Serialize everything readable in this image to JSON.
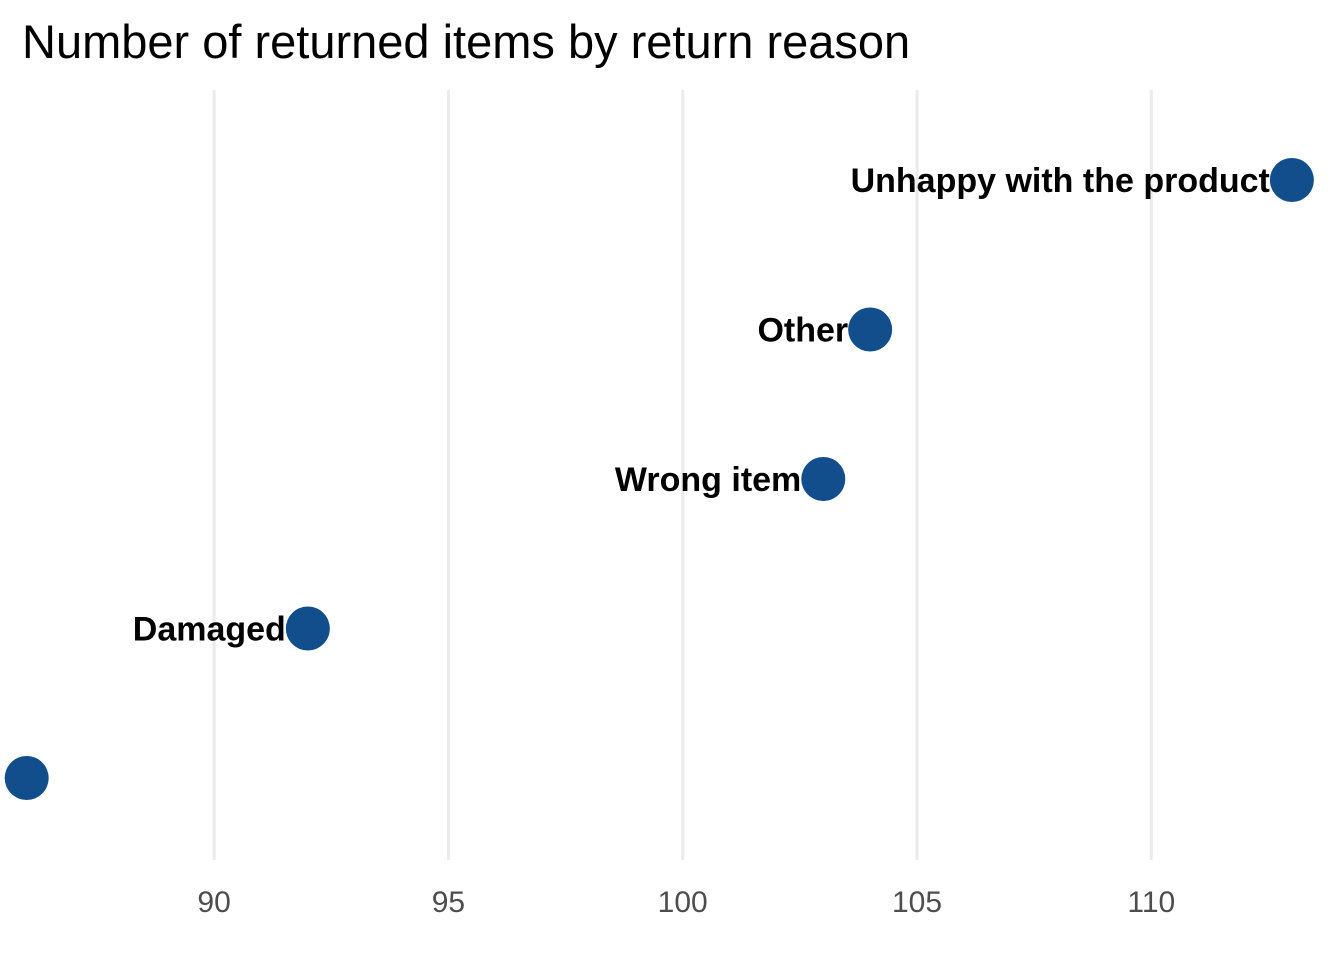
{
  "chart_data": {
    "type": "scatter",
    "title": "Number of returned items by return reason",
    "xlabel": "",
    "ylabel": "",
    "xlim": [
      85.9,
      113.6
    ],
    "x_ticks": [
      90,
      95,
      100,
      105,
      110
    ],
    "x_tick_labels": [
      "90",
      "95",
      "100",
      "105",
      "110"
    ],
    "grid": "vertical major gridlines",
    "legend": "none",
    "colors": {
      "point": "#124E8C",
      "grid": "#EBEBEB"
    },
    "points": [
      {
        "label": "Unhappy with the product",
        "value": 113
      },
      {
        "label": "Other",
        "value": 104
      },
      {
        "label": "Wrong item",
        "value": 103
      },
      {
        "label": "Damaged",
        "value": 92
      },
      {
        "label": "",
        "value": 86
      }
    ]
  }
}
